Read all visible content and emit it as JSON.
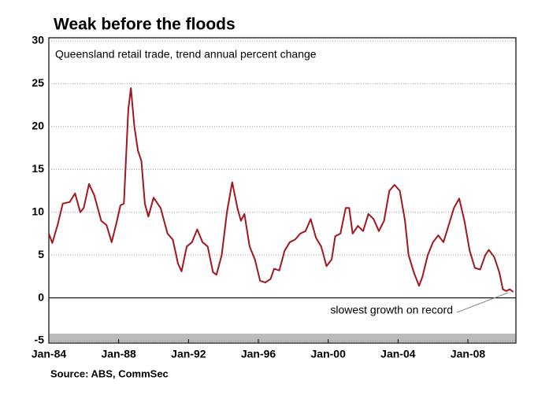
{
  "chart_data": {
    "type": "line",
    "title": "Weak before the floods",
    "subtitle": "Queensland retail trade, trend annual percent change",
    "source": "Source: ABS, CommSec",
    "annotation": "slowest growth on record",
    "color": "#a3161e",
    "x": [
      1984.0,
      1984.2,
      1984.5,
      1984.8,
      1985.2,
      1985.5,
      1985.8,
      1986.0,
      1986.3,
      1986.6,
      1987.0,
      1987.3,
      1987.6,
      1987.9,
      1988.1,
      1988.3,
      1988.55,
      1988.7,
      1988.9,
      1989.1,
      1989.3,
      1989.5,
      1989.7,
      1990.0,
      1990.4,
      1990.8,
      1991.1,
      1991.4,
      1991.6,
      1991.9,
      1992.2,
      1992.5,
      1992.8,
      1993.1,
      1993.4,
      1993.6,
      1993.9,
      1994.2,
      1994.5,
      1994.8,
      1995.0,
      1995.2,
      1995.5,
      1995.8,
      1996.1,
      1996.4,
      1996.7,
      1996.9,
      1997.2,
      1997.5,
      1997.8,
      1998.1,
      1998.4,
      1998.7,
      1999.0,
      1999.3,
      1999.6,
      1999.9,
      2000.2,
      2000.4,
      2000.7,
      2001.0,
      2001.2,
      2001.4,
      2001.7,
      2002.0,
      2002.3,
      2002.6,
      2002.9,
      2003.2,
      2003.5,
      2003.8,
      2004.1,
      2004.4,
      2004.6,
      2004.9,
      2005.2,
      2005.4,
      2005.7,
      2006.0,
      2006.3,
      2006.6,
      2006.9,
      2007.2,
      2007.5,
      2007.8,
      2008.1,
      2008.4,
      2008.7,
      2009.0,
      2009.2,
      2009.5,
      2009.8,
      2010.0,
      2010.2,
      2010.4,
      2010.6
    ],
    "values": [
      7.5,
      6.4,
      8.5,
      11,
      11.2,
      12.2,
      10,
      10.5,
      13.3,
      12,
      9,
      8.5,
      6.5,
      9,
      10.8,
      11,
      22,
      24.5,
      20,
      17.2,
      16,
      11,
      9.5,
      11.7,
      10.5,
      7.5,
      6.8,
      4,
      3.1,
      6,
      6.5,
      8,
      6.5,
      6,
      3,
      2.7,
      5,
      10,
      13.5,
      10.5,
      9,
      9.8,
      6,
      4.5,
      2,
      1.8,
      2.2,
      3.4,
      3.2,
      5.5,
      6.5,
      6.8,
      7.5,
      7.8,
      9.2,
      7,
      6,
      3.7,
      4.5,
      7.2,
      7.5,
      10.5,
      10.5,
      7.5,
      8.4,
      7.8,
      9.8,
      9.2,
      7.8,
      9,
      12.5,
      13.2,
      12.5,
      9,
      5,
      3,
      1.4,
      2.5,
      5,
      6.5,
      7.3,
      6.5,
      8.5,
      10.5,
      11.6,
      9,
      5.5,
      3.5,
      3.3,
      5,
      5.6,
      4.8,
      3,
      1,
      0.8,
      1,
      0.7
    ],
    "xlim": [
      1984,
      2010.75
    ],
    "xticks": [
      {
        "value": 1984,
        "label": "Jan-84"
      },
      {
        "value": 1988,
        "label": "Jan-88"
      },
      {
        "value": 1992,
        "label": "Jan-92"
      },
      {
        "value": 1996,
        "label": "Jan-96"
      },
      {
        "value": 2000,
        "label": "Jan-00"
      },
      {
        "value": 2004,
        "label": "Jan-04"
      },
      {
        "value": 2008,
        "label": "Jan-08"
      }
    ],
    "ylim": [
      -5,
      30
    ],
    "yticks": [
      -5,
      0,
      5,
      10,
      15,
      20,
      25,
      30
    ],
    "grid": true
  }
}
